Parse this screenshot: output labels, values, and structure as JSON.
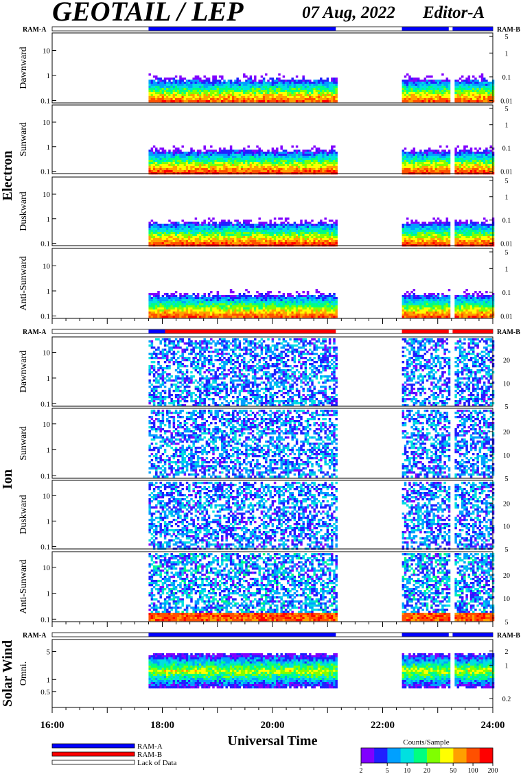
{
  "header": {
    "title": "GEOTAIL / LEP",
    "date": "07 Aug, 2022",
    "editor": "Editor-A"
  },
  "ram_labels": {
    "left": "RAM-A",
    "right": "RAM-B"
  },
  "groups": [
    {
      "label": "Electron",
      "panels": [
        0,
        1,
        2,
        3
      ]
    },
    {
      "label": "Ion",
      "panels": [
        4,
        5,
        6,
        7
      ]
    },
    {
      "label": "Solar Wind",
      "panels": [
        8
      ]
    }
  ],
  "colors": {
    "ram_a": "#0000ff",
    "ram_b": "#ff0000",
    "colorbar": [
      "#8000ff",
      "#2020ff",
      "#00a0ff",
      "#00e0e0",
      "#00ff80",
      "#80ff00",
      "#ffff00",
      "#ffa000",
      "#ff5000",
      "#ff0000"
    ]
  },
  "chart_data": {
    "type": "heatmap",
    "x_axis": {
      "label": "Universal Time",
      "range_hours": [
        16,
        24
      ],
      "ticks": [
        "16:00",
        "18:00",
        "20:00",
        "22:00",
        "24:00"
      ]
    },
    "data_coverage_hours": [
      [
        17.75,
        21.15
      ],
      [
        22.35,
        24.0
      ]
    ],
    "data_gap_hours": [
      [
        23.2,
        23.27
      ]
    ],
    "ram_bars": [
      {
        "block": "electron",
        "segments": [
          {
            "from": 17.75,
            "to": 21.15,
            "mode": "RAM-A"
          },
          {
            "from": 22.35,
            "to": 24.0,
            "mode": "RAM-A"
          }
        ]
      },
      {
        "block": "ion",
        "segments": [
          {
            "from": 17.75,
            "to": 18.05,
            "mode": "RAM-A"
          },
          {
            "from": 18.05,
            "to": 21.15,
            "mode": "RAM-B"
          },
          {
            "from": 22.35,
            "to": 24.0,
            "mode": "RAM-B"
          }
        ]
      },
      {
        "block": "solar_wind",
        "segments": [
          {
            "from": 17.75,
            "to": 21.15,
            "mode": "RAM-A"
          },
          {
            "from": 22.35,
            "to": 24.0,
            "mode": "RAM-A"
          }
        ]
      }
    ],
    "panels": [
      {
        "id": "e-dawn",
        "group": "Electron",
        "label": "Dawnward",
        "left_ticks": [
          "10",
          "1",
          "0.1"
        ],
        "left_vals": [
          10,
          1,
          0.1
        ],
        "ylim": [
          0.08,
          50
        ],
        "right_ticks": [
          "5",
          "1",
          "0.1",
          "0.01"
        ],
        "right_vals": [
          5,
          1,
          0.1,
          0.01
        ],
        "rlim": [
          0.008,
          7
        ],
        "kind": "electron"
      },
      {
        "id": "e-sun",
        "group": "Electron",
        "label": "Sunward",
        "left_ticks": [
          "10",
          "1",
          "0.1"
        ],
        "left_vals": [
          10,
          1,
          0.1
        ],
        "ylim": [
          0.08,
          50
        ],
        "right_ticks": [
          "5",
          "1",
          "0.1",
          "0.01"
        ],
        "right_vals": [
          5,
          1,
          0.1,
          0.01
        ],
        "rlim": [
          0.008,
          7
        ],
        "kind": "electron"
      },
      {
        "id": "e-dusk",
        "group": "Electron",
        "label": "Duskward",
        "left_ticks": [
          "10",
          "1",
          "0.1"
        ],
        "left_vals": [
          10,
          1,
          0.1
        ],
        "ylim": [
          0.08,
          50
        ],
        "right_ticks": [
          "5",
          "1",
          "0.1",
          "0.01"
        ],
        "right_vals": [
          5,
          1,
          0.1,
          0.01
        ],
        "rlim": [
          0.008,
          7
        ],
        "kind": "electron"
      },
      {
        "id": "e-anti",
        "group": "Electron",
        "label": "Anti-Sunward",
        "left_ticks": [
          "10",
          "1",
          "0.1"
        ],
        "left_vals": [
          10,
          1,
          0.1
        ],
        "ylim": [
          0.08,
          50
        ],
        "right_ticks": [
          "5",
          "1",
          "0.1",
          "0.01"
        ],
        "right_vals": [
          5,
          1,
          0.1,
          0.01
        ],
        "rlim": [
          0.008,
          7
        ],
        "kind": "electron"
      },
      {
        "id": "i-dawn",
        "group": "Ion",
        "label": "Dawnward",
        "left_ticks": [
          "10",
          "1",
          "0.1"
        ],
        "left_vals": [
          10,
          1,
          0.1
        ],
        "ylim": [
          0.08,
          40
        ],
        "right_ticks": [
          "20",
          "10",
          "5"
        ],
        "right_vals": [
          20,
          10,
          5
        ],
        "rlim": [
          5,
          40
        ],
        "kind": "ion"
      },
      {
        "id": "i-sun",
        "group": "Ion",
        "label": "Sunward",
        "left_ticks": [
          "10",
          "1",
          "0.1"
        ],
        "left_vals": [
          10,
          1,
          0.1
        ],
        "ylim": [
          0.08,
          40
        ],
        "right_ticks": [
          "20",
          "10",
          "5"
        ],
        "right_vals": [
          20,
          10,
          5
        ],
        "rlim": [
          5,
          40
        ],
        "kind": "ion"
      },
      {
        "id": "i-dusk",
        "group": "Ion",
        "label": "Duskward",
        "left_ticks": [
          "10",
          "1",
          "0.1"
        ],
        "left_vals": [
          10,
          1,
          0.1
        ],
        "ylim": [
          0.08,
          40
        ],
        "right_ticks": [
          "20",
          "10",
          "5"
        ],
        "right_vals": [
          20,
          10,
          5
        ],
        "rlim": [
          5,
          40
        ],
        "kind": "ion"
      },
      {
        "id": "i-anti",
        "group": "Ion",
        "label": "Anti-Sunward",
        "left_ticks": [
          "10",
          "1",
          "0.1"
        ],
        "left_vals": [
          10,
          1,
          0.1
        ],
        "ylim": [
          0.08,
          40
        ],
        "right_ticks": [
          "20",
          "10",
          "5"
        ],
        "right_vals": [
          20,
          10,
          5
        ],
        "rlim": [
          5,
          40
        ],
        "kind": "ion-anti"
      },
      {
        "id": "sw-omni",
        "group": "Solar Wind",
        "label": "Omni.",
        "left_ticks": [
          "5",
          "1",
          "0.5"
        ],
        "left_vals": [
          5,
          1,
          0.5
        ],
        "ylim": [
          0.2,
          10
        ],
        "right_ticks": [
          "2",
          "1",
          "0.2"
        ],
        "right_vals": [
          2,
          1,
          0.2
        ],
        "rlim": [
          0.13,
          3.5
        ],
        "kind": "solar"
      }
    ],
    "legend": [
      {
        "label": "RAM-A",
        "color": "#0000ff"
      },
      {
        "label": "RAM-B",
        "color": "#ff0000"
      },
      {
        "label": "Lack of Data",
        "color": "#ffffff"
      }
    ],
    "colorbar": {
      "title": "Counts/Sample",
      "ticks": [
        "2",
        "5",
        "10",
        "20",
        "50",
        "100",
        "200"
      ],
      "values": [
        2,
        5,
        10,
        20,
        50,
        100,
        200
      ],
      "range": [
        2,
        200
      ]
    }
  }
}
